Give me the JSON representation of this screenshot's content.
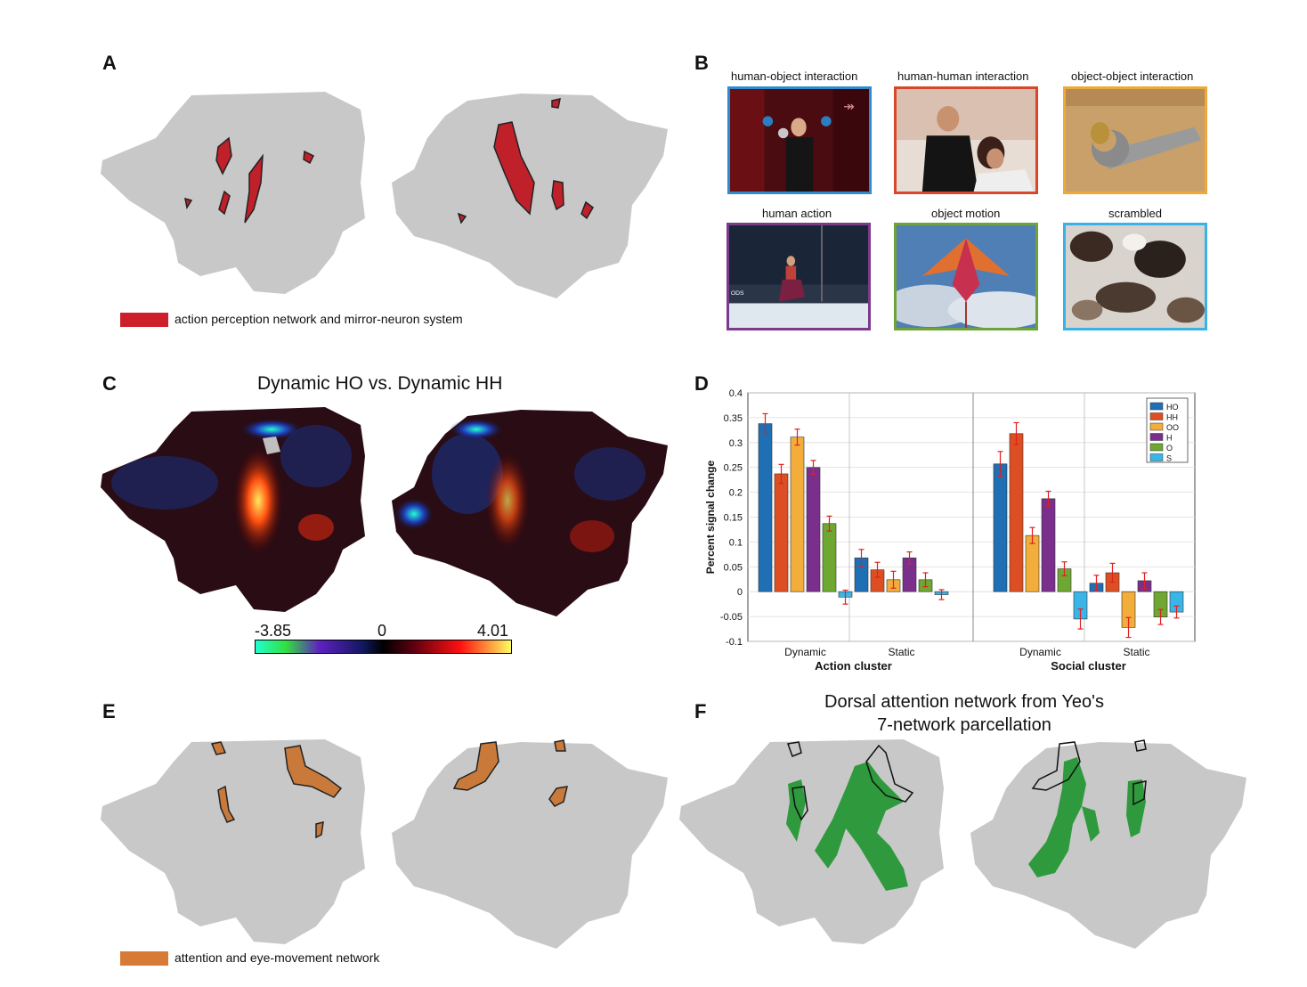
{
  "panels": {
    "A": {
      "letter": "A",
      "legend": "action perception network and mirror-neuron system",
      "legend_color": "#cc1f29"
    },
    "B": {
      "letter": "B",
      "stimuli": [
        {
          "label": "human-object interaction",
          "border": "#2e8bcf"
        },
        {
          "label": "human-human interaction",
          "border": "#d8472b"
        },
        {
          "label": "object-object interaction",
          "border": "#f0a83a"
        },
        {
          "label": "human action",
          "border": "#7b3a8c"
        },
        {
          "label": "object motion",
          "border": "#6ea33a"
        },
        {
          "label": "scrambled",
          "border": "#3ab2e6"
        }
      ]
    },
    "C": {
      "letter": "C",
      "title": "Dynamic HO vs. Dynamic HH",
      "cbar_min": "-3.85",
      "cbar_mid": "0",
      "cbar_max": "4.01"
    },
    "D": {
      "letter": "D"
    },
    "E": {
      "letter": "E",
      "legend": "attention and eye-movement network",
      "legend_color": "#d77a35"
    },
    "F": {
      "letter": "F",
      "title_line1": "Dorsal attention network from Yeo's",
      "title_line2": "7-network parcellation",
      "network_color": "#2e9a3d"
    }
  },
  "chart_data": {
    "type": "bar",
    "ylabel": "Percent signal change",
    "ylim": [
      -0.1,
      0.4
    ],
    "yticks": [
      "-0.1",
      "-0.05",
      "0",
      "0.05",
      "0.1",
      "0.15",
      "0.2",
      "0.25",
      "0.3",
      "0.35",
      "0.4"
    ],
    "grid": true,
    "legend_position": "top-right",
    "clusters": [
      {
        "name": "Action cluster",
        "conditions": [
          "Dynamic",
          "Static"
        ]
      },
      {
        "name": "Social cluster",
        "conditions": [
          "Dynamic",
          "Static"
        ]
      }
    ],
    "series": [
      {
        "name": "HO",
        "color": "#1f6fb5",
        "values": [
          0.338,
          0.068,
          0.257,
          0.017
        ],
        "errors": [
          0.02,
          0.017,
          0.025,
          0.016
        ]
      },
      {
        "name": "HH",
        "color": "#dd4f22",
        "values": [
          0.237,
          0.044,
          0.318,
          0.038
        ],
        "errors": [
          0.019,
          0.015,
          0.022,
          0.019
        ]
      },
      {
        "name": "OO",
        "color": "#f2ad3a",
        "values": [
          0.311,
          0.024,
          0.113,
          -0.072
        ],
        "errors": [
          0.016,
          0.017,
          0.016,
          0.02
        ]
      },
      {
        "name": "H",
        "color": "#7a2f8c",
        "values": [
          0.25,
          0.068,
          0.187,
          0.022
        ],
        "errors": [
          0.014,
          0.012,
          0.015,
          0.016
        ]
      },
      {
        "name": "O",
        "color": "#6ea732",
        "values": [
          0.137,
          0.024,
          0.046,
          -0.051
        ],
        "errors": [
          0.015,
          0.014,
          0.014,
          0.015
        ]
      },
      {
        "name": "S",
        "color": "#3ab5e8",
        "values": [
          -0.011,
          -0.006,
          -0.055,
          -0.041
        ],
        "errors": [
          0.014,
          0.01,
          0.02,
          0.012
        ]
      }
    ]
  }
}
